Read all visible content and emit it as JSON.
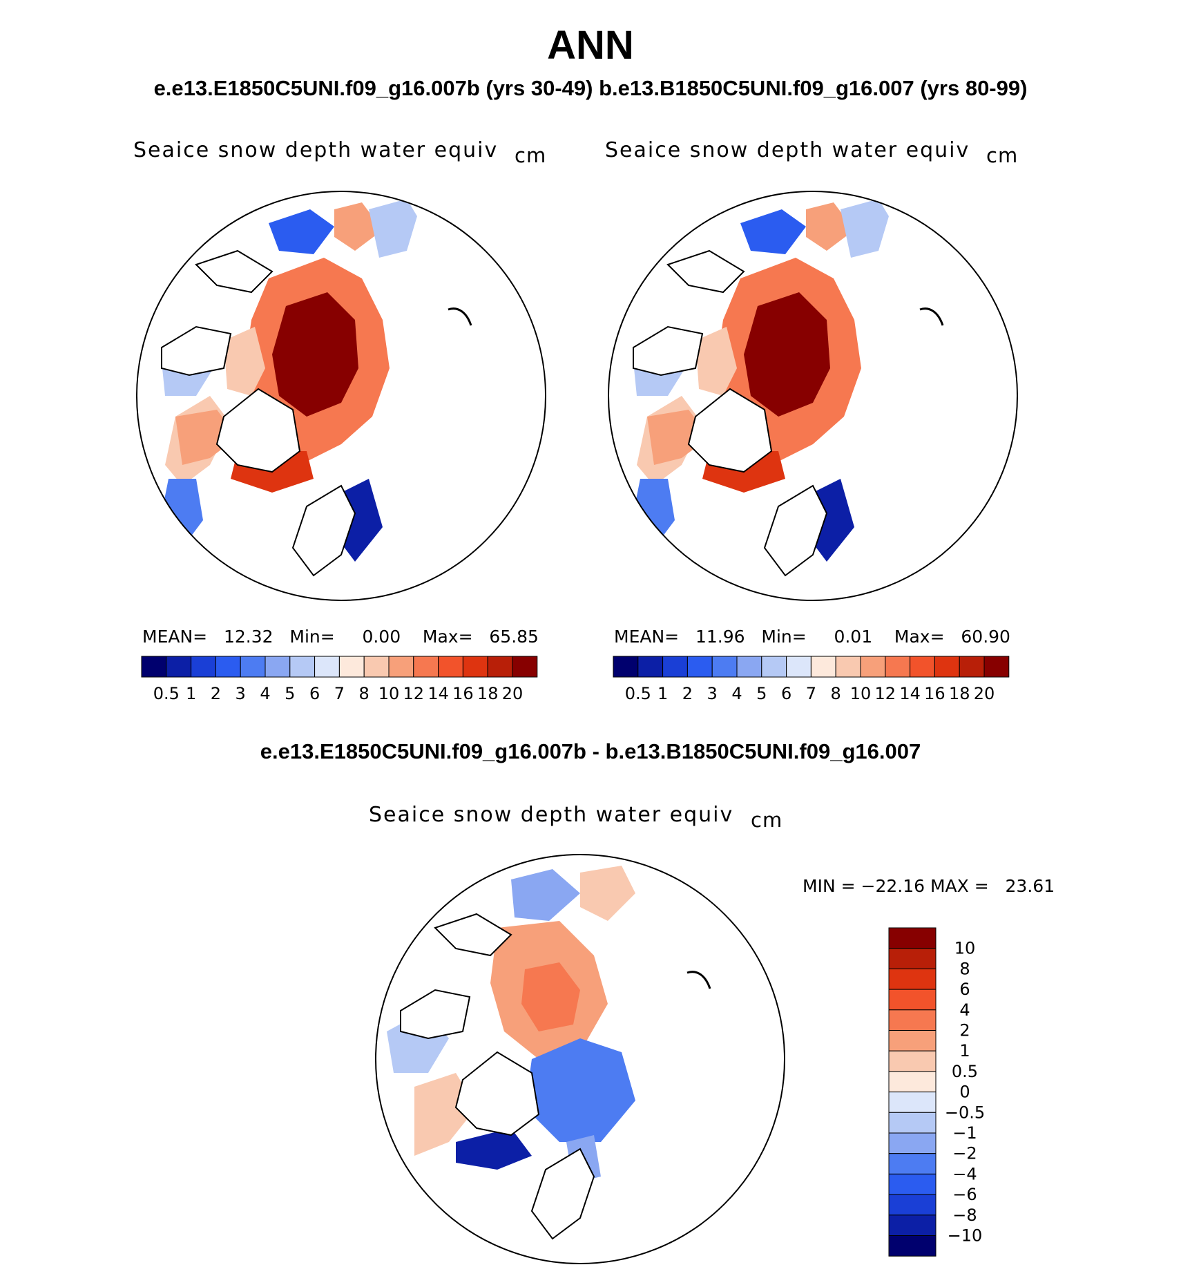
{
  "main_title": "ANN",
  "subtitle": "e.e13.E1850C5UNI.f09_g16.007b (yrs 30-49)  b.e13.B1850C5UNI.f09_g16.007 (yrs 80-99)",
  "diff_title": "e.e13.E1850C5UNI.f09_g16.007b - b.e13.B1850C5UNI.f09_g16.007",
  "colors": {
    "abs_scale": [
      "#00006e",
      "#0c1fa6",
      "#1a3fd6",
      "#2b5cf0",
      "#4d7cf2",
      "#8aa7f2",
      "#b5c9f5",
      "#dce6fa",
      "#fde9dc",
      "#f9c9b0",
      "#f7a07a",
      "#f67850",
      "#f2532b",
      "#de3410",
      "#b81f08",
      "#870000"
    ],
    "diff_scale": [
      "#870000",
      "#b81f08",
      "#de3410",
      "#f2532b",
      "#f67850",
      "#f7a07a",
      "#f9c9b0",
      "#fde9dc",
      "#dce6fa",
      "#b5c9f5",
      "#8aa7f2",
      "#4d7cf2",
      "#2b5cf0",
      "#1a3fd6",
      "#0c1fa6",
      "#00006e"
    ]
  },
  "chart_data": [
    {
      "type": "heatmap",
      "projection": "north-polar-stereographic",
      "case": "e.e13.E1850C5UNI.f09_g16.007b (yrs 30-49)",
      "title": "Seaice snow depth water equiv",
      "units": "cm",
      "mean_label": "MEAN=",
      "mean": "12.32",
      "min_label": "Min=",
      "min": "0.00",
      "max_label": "Max=",
      "max": "65.85",
      "colorbar_levels": [
        "0.5",
        "1",
        "2",
        "3",
        "4",
        "5",
        "6",
        "7",
        "8",
        "10",
        "12",
        "14",
        "16",
        "18",
        "20"
      ]
    },
    {
      "type": "heatmap",
      "projection": "north-polar-stereographic",
      "case": "b.e13.B1850C5UNI.f09_g16.007 (yrs 80-99)",
      "title": "Seaice snow depth water equiv",
      "units": "cm",
      "mean_label": "MEAN=",
      "mean": "11.96",
      "min_label": "Min=",
      "min": "0.01",
      "max_label": "Max=",
      "max": "60.90",
      "colorbar_levels": [
        "0.5",
        "1",
        "2",
        "3",
        "4",
        "5",
        "6",
        "7",
        "8",
        "10",
        "12",
        "14",
        "16",
        "18",
        "20"
      ]
    },
    {
      "type": "heatmap",
      "projection": "north-polar-stereographic",
      "case": "difference",
      "title": "Seaice snow depth water equiv",
      "units": "cm",
      "min_label": "MIN =",
      "min": "−22.16",
      "max_label": "MAX =",
      "max": "23.61",
      "colorbar_levels": [
        "10",
        "8",
        "6",
        "4",
        "2",
        "1",
        "0.5",
        "0",
        "−0.5",
        "−1",
        "−2",
        "−4",
        "−6",
        "−8",
        "−10"
      ]
    }
  ]
}
